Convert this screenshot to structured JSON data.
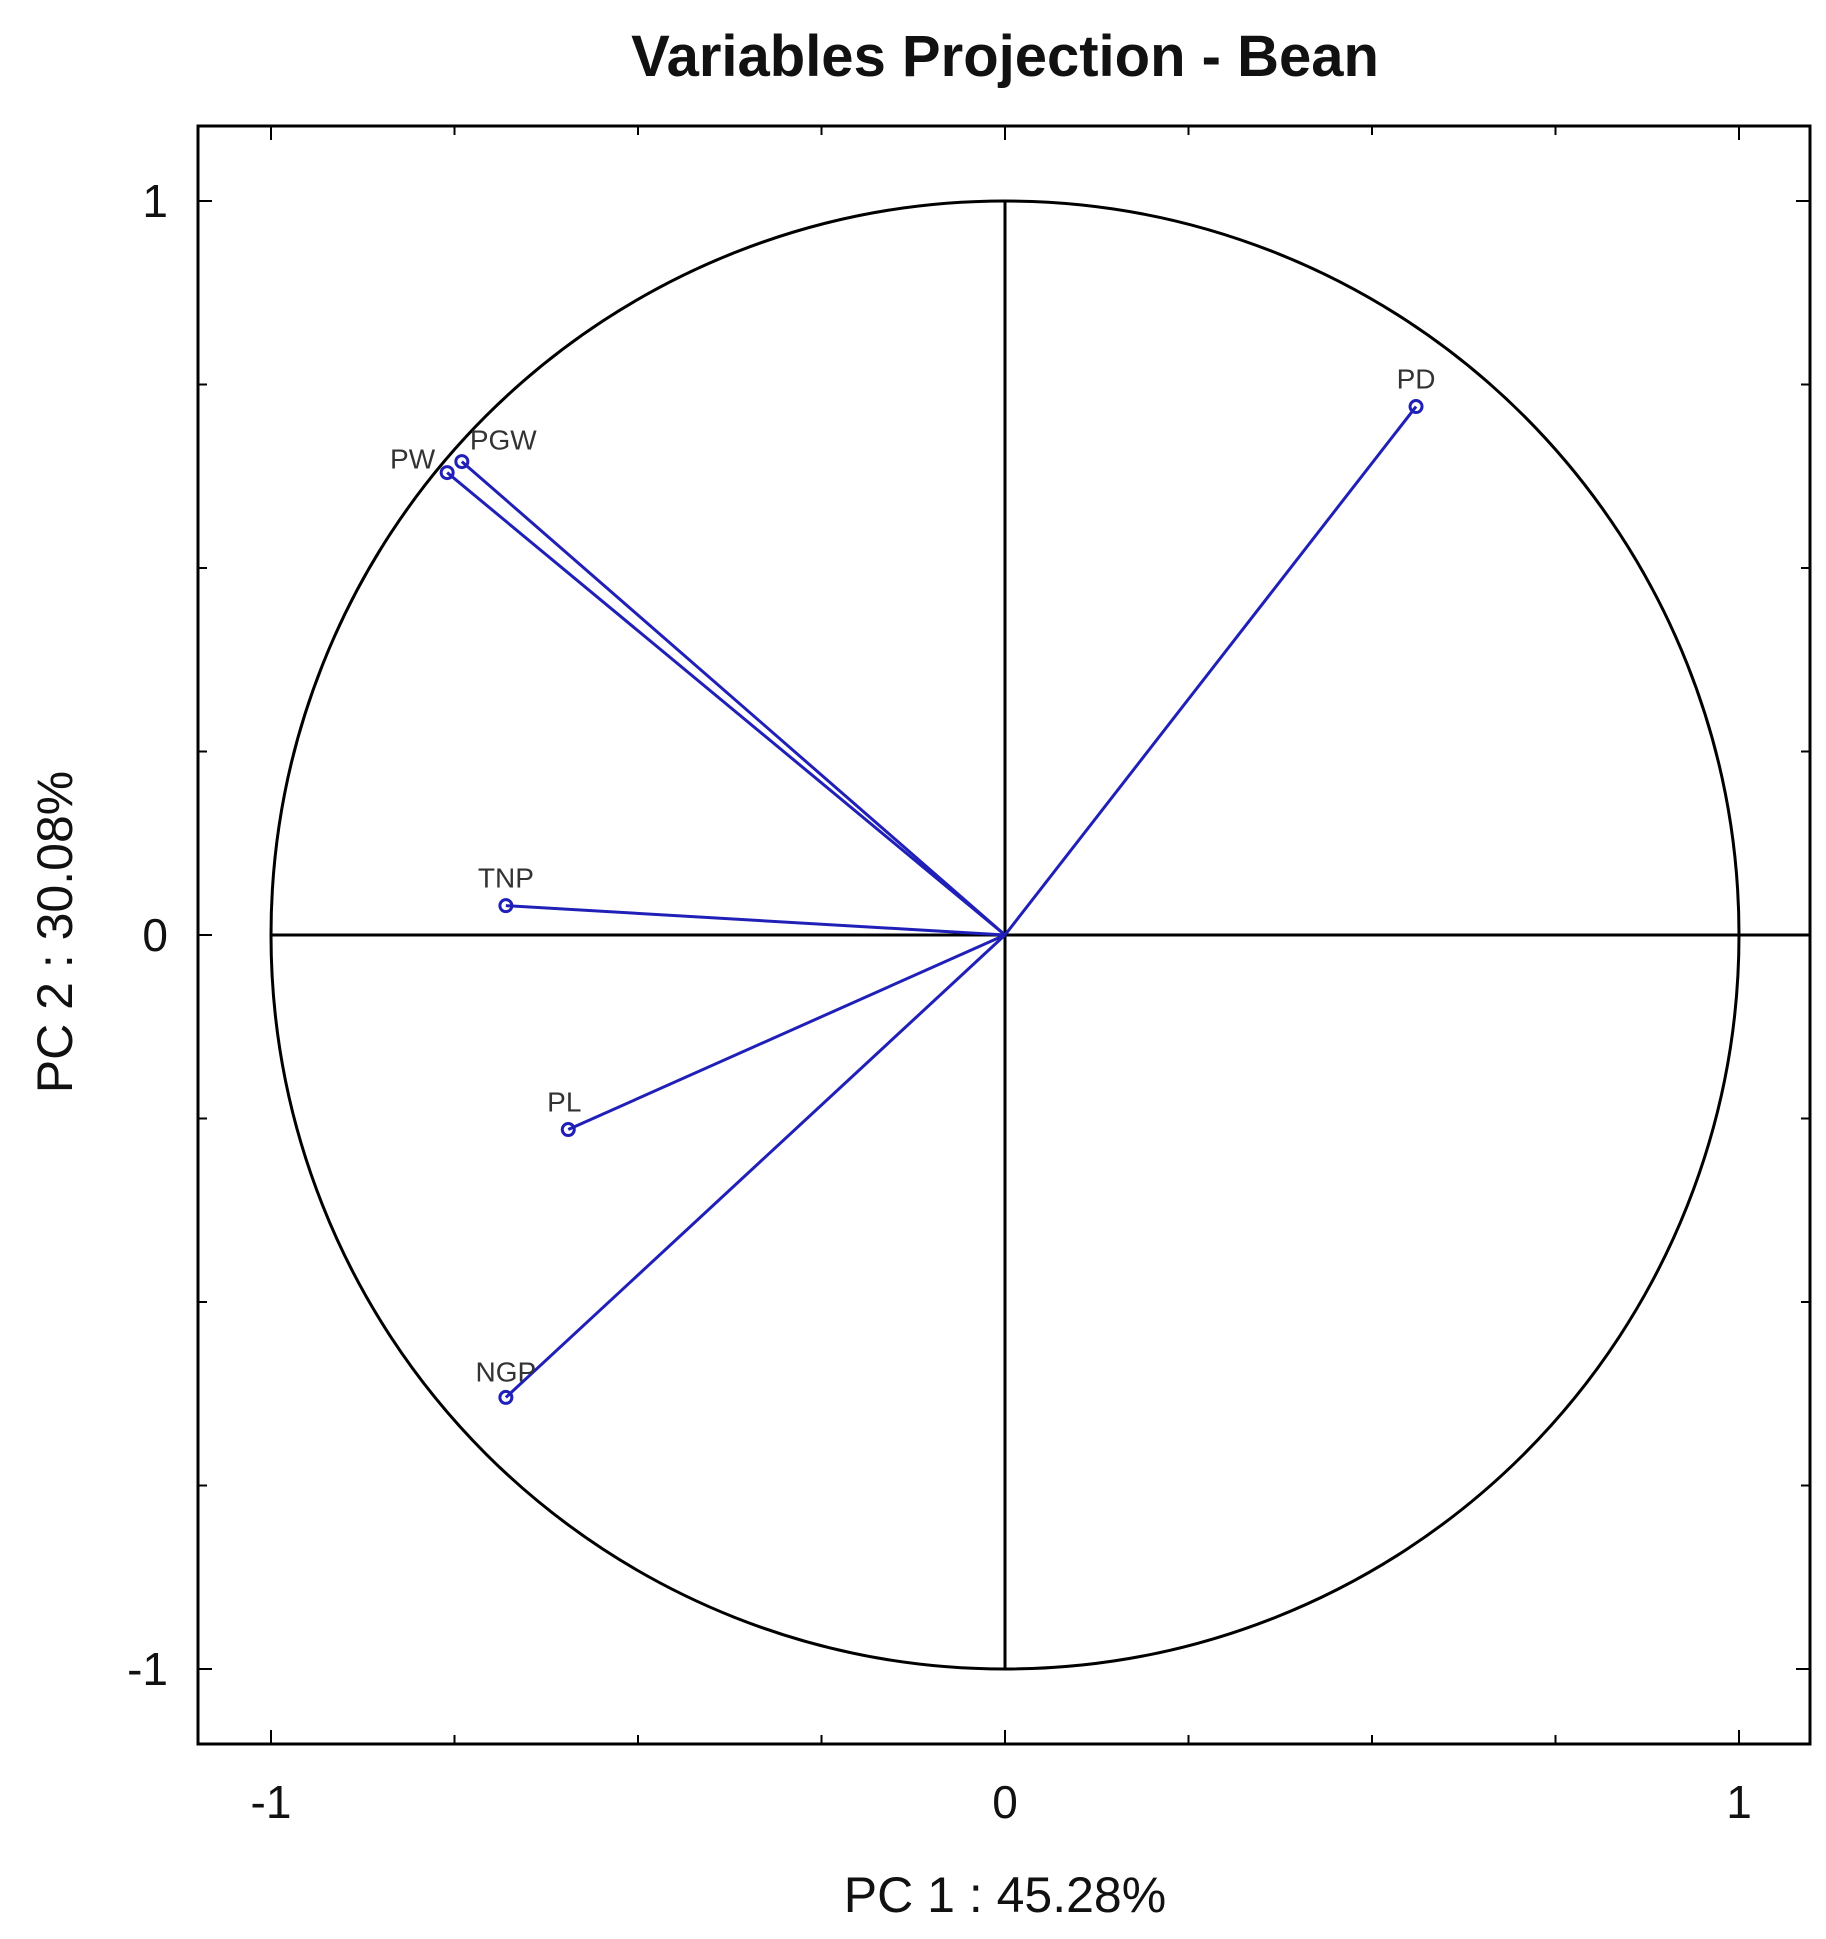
{
  "chart_data": {
    "type": "scatter",
    "subtype": "pca-variables-projection",
    "title": "Variables Projection - Bean",
    "xlabel": "PC 1 : 45.28%",
    "ylabel": "PC 2 : 30.08%",
    "xlim": [
      -1.1,
      1.1
    ],
    "ylim": [
      -1.1,
      1.1
    ],
    "xticks": [
      -1,
      0,
      1
    ],
    "yticks": [
      -1,
      0,
      1
    ],
    "xtick_labels": [
      "-1",
      "0",
      "1"
    ],
    "ytick_labels": [
      "-1",
      "0",
      "1"
    ],
    "unit_circle": true,
    "grid": false,
    "colors": {
      "vectors": "#2020b8",
      "axes": "#000000"
    },
    "points": [
      {
        "label": "PD",
        "x": 0.56,
        "y": 0.72
      },
      {
        "label": "PGW",
        "x": -0.74,
        "y": 0.645
      },
      {
        "label": "PW",
        "x": -0.76,
        "y": 0.63
      },
      {
        "label": "TNP",
        "x": -0.68,
        "y": 0.04
      },
      {
        "label": "PL",
        "x": -0.595,
        "y": -0.265
      },
      {
        "label": "NGP",
        "x": -0.68,
        "y": -0.63
      }
    ]
  }
}
